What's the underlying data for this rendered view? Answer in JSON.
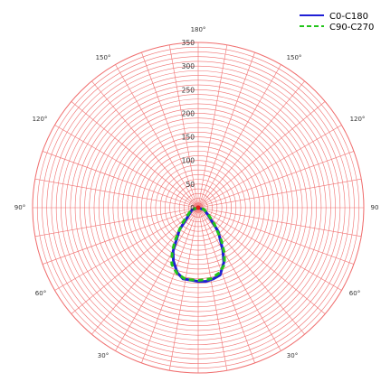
{
  "chart_data": {
    "type": "polar",
    "title": "",
    "radial_axis": {
      "range": [
        0,
        350
      ],
      "ticks": [
        0,
        50,
        100,
        150,
        200,
        250,
        300,
        350
      ]
    },
    "angle_labels": [
      "180°",
      "150°",
      "150°",
      "120°",
      "120°",
      "90",
      "90°",
      "60°",
      "60°",
      "30°",
      "30°"
    ],
    "grid": true,
    "legend": {
      "position": "top-right"
    },
    "series": [
      {
        "name": "C0-C180",
        "color": "#1f1fd6",
        "style": "solid",
        "points": [
          {
            "angle": -70,
            "value": 14
          },
          {
            "angle": -55,
            "value": 22
          },
          {
            "angle": -40,
            "value": 62
          },
          {
            "angle": -30,
            "value": 106
          },
          {
            "angle": -25,
            "value": 124
          },
          {
            "angle": -18,
            "value": 144
          },
          {
            "angle": -12,
            "value": 154
          },
          {
            "angle": -6,
            "value": 154
          },
          {
            "angle": 0,
            "value": 156
          },
          {
            "angle": 6,
            "value": 157
          },
          {
            "angle": 12,
            "value": 154
          },
          {
            "angle": 18,
            "value": 150
          },
          {
            "angle": 25,
            "value": 128
          },
          {
            "angle": 30,
            "value": 104
          },
          {
            "angle": 40,
            "value": 66
          },
          {
            "angle": 55,
            "value": 24
          },
          {
            "angle": 70,
            "value": 14
          }
        ]
      },
      {
        "name": "C90-C270",
        "color": "#22c41a",
        "style": "dashed",
        "points": [
          {
            "angle": -75,
            "value": 12
          },
          {
            "angle": -60,
            "value": 22
          },
          {
            "angle": -45,
            "value": 48
          },
          {
            "angle": -35,
            "value": 86
          },
          {
            "angle": -30,
            "value": 110
          },
          {
            "angle": -25,
            "value": 132
          },
          {
            "angle": -18,
            "value": 146
          },
          {
            "angle": -10,
            "value": 154
          },
          {
            "angle": 0,
            "value": 154
          },
          {
            "angle": 10,
            "value": 153
          },
          {
            "angle": 18,
            "value": 145
          },
          {
            "angle": 25,
            "value": 132
          },
          {
            "angle": 30,
            "value": 110
          },
          {
            "angle": 35,
            "value": 86
          },
          {
            "angle": 45,
            "value": 48
          },
          {
            "angle": 60,
            "value": 22
          },
          {
            "angle": 75,
            "value": 12
          }
        ]
      }
    ]
  }
}
